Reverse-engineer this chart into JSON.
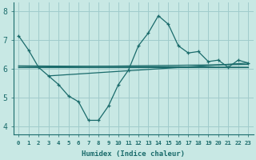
{
  "title": "",
  "xlabel": "Humidex (Indice chaleur)",
  "ylabel": "",
  "background_color": "#c8e8e4",
  "grid_color": "#a0cccc",
  "line_color": "#1a6b6b",
  "xlim": [
    -0.5,
    23.5
  ],
  "ylim": [
    3.7,
    8.3
  ],
  "yticks": [
    4,
    5,
    6,
    7,
    8
  ],
  "xtick_labels": [
    "0",
    "1",
    "2",
    "3",
    "4",
    "5",
    "6",
    "7",
    "8",
    "9",
    "10",
    "11",
    "12",
    "13",
    "14",
    "15",
    "16",
    "17",
    "18",
    "19",
    "20",
    "21",
    "22",
    "23"
  ],
  "line1_x": [
    0,
    1,
    2,
    3,
    4,
    5,
    6,
    7,
    8,
    9,
    10,
    11,
    12,
    13,
    14,
    15,
    16,
    17,
    18,
    19,
    20,
    21,
    22,
    23
  ],
  "line1_y": [
    7.15,
    6.65,
    6.05,
    5.75,
    5.45,
    5.05,
    4.85,
    4.2,
    4.2,
    4.7,
    5.45,
    5.95,
    6.8,
    7.25,
    7.85,
    7.55,
    6.8,
    6.55,
    6.6,
    6.25,
    6.3,
    6.05,
    6.3,
    6.2
  ],
  "line2_x": [
    0,
    23
  ],
  "line2_y": [
    6.05,
    6.05
  ],
  "line3_x": [
    3,
    23
  ],
  "line3_y": [
    5.75,
    6.2
  ],
  "line4_x": [
    0,
    23
  ],
  "line4_y": [
    6.1,
    6.05
  ],
  "line5_x": [
    0,
    23
  ],
  "line5_y": [
    6.05,
    6.15
  ]
}
